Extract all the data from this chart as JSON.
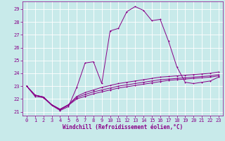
{
  "xlabel": "Windchill (Refroidissement éolien,°C)",
  "background_color": "#c8eaea",
  "grid_color": "#b0d8d8",
  "line_color": "#880088",
  "xlim": [
    -0.5,
    23.5
  ],
  "ylim": [
    20.7,
    29.6
  ],
  "yticks": [
    21,
    22,
    23,
    24,
    25,
    26,
    27,
    28,
    29
  ],
  "xticks": [
    0,
    1,
    2,
    3,
    4,
    5,
    6,
    7,
    8,
    9,
    10,
    11,
    12,
    13,
    14,
    15,
    16,
    17,
    18,
    19,
    20,
    21,
    22,
    23
  ],
  "series1_x": [
    0,
    1,
    2,
    3,
    4,
    5,
    6,
    7,
    8,
    9,
    10,
    11,
    12,
    13,
    14,
    15,
    16,
    17,
    18,
    19,
    20,
    21,
    22,
    23
  ],
  "series1_y": [
    23.0,
    22.2,
    22.1,
    21.5,
    21.1,
    21.4,
    22.9,
    24.8,
    24.9,
    23.2,
    27.3,
    27.5,
    28.8,
    29.2,
    28.9,
    28.1,
    28.2,
    26.5,
    24.5,
    23.3,
    23.2,
    23.3,
    23.4,
    23.7
  ],
  "series2_x": [
    0,
    1,
    2,
    3,
    4,
    5,
    6,
    7,
    8,
    9,
    10,
    11,
    12,
    13,
    14,
    15,
    16,
    17,
    18,
    19,
    20,
    21,
    22,
    23
  ],
  "series2_y": [
    23.0,
    22.3,
    22.15,
    21.55,
    21.15,
    21.5,
    22.0,
    22.2,
    22.4,
    22.55,
    22.7,
    22.85,
    22.95,
    23.05,
    23.15,
    23.25,
    23.35,
    23.45,
    23.5,
    23.55,
    23.6,
    23.65,
    23.7,
    23.8
  ],
  "series3_x": [
    0,
    1,
    2,
    3,
    4,
    5,
    6,
    7,
    8,
    9,
    10,
    11,
    12,
    13,
    14,
    15,
    16,
    17,
    18,
    19,
    20,
    21,
    22,
    23
  ],
  "series3_y": [
    23.0,
    22.3,
    22.15,
    21.55,
    21.2,
    21.55,
    22.1,
    22.35,
    22.55,
    22.7,
    22.85,
    23.0,
    23.1,
    23.2,
    23.3,
    23.4,
    23.5,
    23.55,
    23.6,
    23.65,
    23.7,
    23.75,
    23.8,
    23.9
  ],
  "series4_x": [
    0,
    1,
    2,
    3,
    4,
    5,
    6,
    7,
    8,
    9,
    10,
    11,
    12,
    13,
    14,
    15,
    16,
    17,
    18,
    19,
    20,
    21,
    22,
    23
  ],
  "series4_y": [
    23.0,
    22.3,
    22.15,
    21.55,
    21.2,
    21.55,
    22.2,
    22.5,
    22.7,
    22.9,
    23.05,
    23.2,
    23.3,
    23.4,
    23.5,
    23.6,
    23.7,
    23.75,
    23.8,
    23.85,
    23.9,
    23.95,
    24.0,
    24.1
  ]
}
